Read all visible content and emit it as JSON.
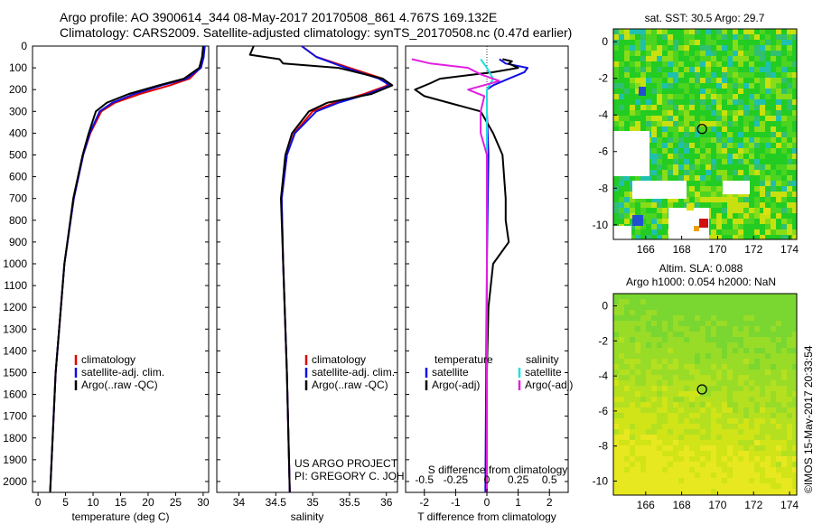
{
  "header": {
    "line1": "Argo profile: AO 3900614_344 08-May-2017 20170508_861 4.767S 169.132E",
    "line2": "Climatology: CARS2009. Satellite-adjusted climatology: synTS_20170508.nc (0.47d earlier)"
  },
  "colors": {
    "climatology": "#e00000",
    "satellite": "#1010e0",
    "argo": "#000000",
    "salinity_sat": "#20e0e0",
    "salinity_argo": "#e020e0"
  },
  "chart_data": [
    {
      "type": "line",
      "name": "temperature",
      "xlabel": "temperature (deg C)",
      "ylabel": "",
      "xlim": [
        -1,
        31
      ],
      "ylim": [
        2050,
        0
      ],
      "xticks": [
        0,
        5,
        10,
        15,
        20,
        25,
        30
      ],
      "yticks": [
        0,
        100,
        200,
        300,
        400,
        500,
        600,
        700,
        800,
        900,
        1000,
        1100,
        1200,
        1300,
        1400,
        1500,
        1600,
        1700,
        1800,
        1900,
        2000
      ],
      "legend": [
        "climatology",
        "satellite-adj. clim.",
        "Argo(..raw -QC)"
      ],
      "series": [
        {
          "name": "climatology",
          "color": "#e00000",
          "depth": [
            0,
            50,
            100,
            150,
            180,
            220,
            260,
            300,
            400,
            500,
            700,
            1000,
            1500,
            2050
          ],
          "values": [
            30.1,
            29.9,
            29.5,
            27.5,
            24,
            18.5,
            14,
            11.5,
            9.5,
            8.2,
            6.5,
            4.8,
            3.2,
            2.2
          ]
        },
        {
          "name": "satellite",
          "color": "#1010e0",
          "depth": [
            0,
            50,
            100,
            150,
            180,
            220,
            260,
            300,
            400,
            500,
            700,
            1000,
            1500,
            2050
          ],
          "values": [
            30.3,
            30.1,
            29.6,
            27,
            22.5,
            17.5,
            13.5,
            11.2,
            9.4,
            8.2,
            6.5,
            4.8,
            3.2,
            2.2
          ]
        },
        {
          "name": "argo",
          "color": "#000000",
          "depth": [
            0,
            50,
            100,
            150,
            180,
            220,
            260,
            300,
            400,
            500,
            700,
            1000,
            1500,
            2050
          ],
          "values": [
            30.0,
            29.8,
            29.3,
            26.5,
            22,
            16.5,
            12.5,
            10.5,
            9.2,
            8.1,
            6.4,
            4.8,
            3.2,
            2.2
          ]
        }
      ]
    },
    {
      "type": "line",
      "name": "salinity",
      "xlabel": "salinity",
      "ylabel": "",
      "xlim": [
        33.7,
        36.15
      ],
      "ylim": [
        2050,
        0
      ],
      "xticks": [
        34,
        34.5,
        35,
        35.5,
        36
      ],
      "xtick_labels": [
        "34",
        "34.5",
        "35",
        "35.5",
        "36"
      ],
      "legend": [
        "climatology",
        "satellite-adj. clim.",
        "Argo(..raw -QC)"
      ],
      "annotation": [
        "US ARGO PROJECT",
        "PI: GREGORY C. JOHNSON"
      ],
      "series": [
        {
          "name": "climatology",
          "color": "#e00000",
          "depth": [
            0,
            50,
            100,
            150,
            180,
            220,
            260,
            300,
            400,
            500,
            700,
            1000,
            1500,
            2050
          ],
          "values": [
            34.85,
            35.05,
            35.5,
            35.95,
            36.02,
            35.7,
            35.3,
            35.0,
            34.75,
            34.65,
            34.58,
            34.6,
            34.65,
            34.69
          ]
        },
        {
          "name": "satellite",
          "color": "#1010e0",
          "depth": [
            0,
            50,
            100,
            150,
            180,
            220,
            260,
            300,
            400,
            500,
            700,
            1000,
            1500,
            2050
          ],
          "values": [
            34.85,
            35.05,
            35.45,
            35.9,
            36.05,
            35.75,
            35.35,
            35.05,
            34.76,
            34.65,
            34.58,
            34.6,
            34.65,
            34.69
          ]
        },
        {
          "name": "argo",
          "color": "#000000",
          "depth": [
            0,
            40,
            60,
            80,
            100,
            150,
            180,
            220,
            260,
            300,
            400,
            500,
            700,
            1000,
            1500,
            2050
          ],
          "values": [
            34.2,
            34.15,
            34.55,
            34.6,
            35.35,
            35.95,
            36.08,
            35.8,
            35.2,
            34.95,
            34.72,
            34.63,
            34.57,
            34.6,
            34.65,
            34.69
          ]
        }
      ]
    },
    {
      "type": "line",
      "name": "difference",
      "xlabel": "T difference from climatology",
      "x2label": "S difference from climatology",
      "xlim": [
        -2.6,
        2.6
      ],
      "ylim": [
        2050,
        0
      ],
      "xticks": [
        -2,
        -1,
        0,
        1,
        2
      ],
      "x2ticks": [
        -0.5,
        -0.25,
        0,
        0.25,
        0.5
      ],
      "x2tick_labels": [
        "-0.5",
        "-0.25",
        "0",
        "0.25",
        "0.5"
      ],
      "legend_temperature": [
        "temperature",
        "satellite",
        "Argo(-adj)"
      ],
      "legend_salinity": [
        "salinity",
        "satellite",
        "Argo(-adj)"
      ],
      "series": [
        {
          "name": "T satellite",
          "color": "#1010e0",
          "depth": [
            60,
            80,
            100,
            120,
            150,
            180,
            200,
            300,
            500,
            1000,
            2050
          ],
          "values": [
            0.4,
            0.6,
            1.3,
            1.2,
            0.7,
            0.2,
            0.0,
            0.0,
            0.05,
            0.0,
            -0.05
          ]
        },
        {
          "name": "T argo",
          "color": "#000000",
          "depth": [
            60,
            70,
            80,
            100,
            120,
            150,
            170,
            200,
            230,
            300,
            400,
            500,
            700,
            800,
            900,
            1000,
            1200,
            1500,
            2050
          ],
          "values": [
            0.5,
            0.8,
            0.7,
            1.0,
            0.2,
            -1.5,
            -1.8,
            -2.3,
            -2.0,
            -0.2,
            0.2,
            0.5,
            0.6,
            0.6,
            0.7,
            0.2,
            0.05,
            0.0,
            0.0
          ]
        },
        {
          "name": "S satellite",
          "color": "#20e0e0",
          "depth": [
            60,
            100,
            150,
            200,
            400,
            1000,
            2050
          ],
          "values": [
            -0.05,
            0.0,
            0.05,
            0.0,
            0.0,
            0.0,
            0.0
          ]
        },
        {
          "name": "S argo",
          "color": "#e020e0",
          "depth": [
            60,
            80,
            100,
            130,
            160,
            200,
            230,
            300,
            400,
            500,
            700,
            1000,
            2050
          ],
          "values": [
            -0.6,
            -0.45,
            -0.15,
            -0.05,
            0.1,
            -0.15,
            -0.02,
            -0.05,
            -0.05,
            0.0,
            0.0,
            0.0,
            0.0
          ]
        }
      ]
    },
    {
      "type": "heatmap",
      "name": "sst-map",
      "title": "sat. SST: 30.5 Argo: 29.7",
      "xlim": [
        164.2,
        174.4
      ],
      "ylim": [
        -10.8,
        0.7
      ],
      "xticks": [
        166,
        168,
        170,
        172,
        174
      ],
      "yticks": [
        0,
        -2,
        -4,
        -6,
        -8,
        -10
      ],
      "marker": {
        "lon": 169.132,
        "lat": -4.767
      }
    },
    {
      "type": "heatmap",
      "name": "sla-map",
      "title_lines": [
        "Altim. SLA: 0.088",
        "Argo h1000: 0.054 h2000: NaN"
      ],
      "xlim": [
        164.2,
        174.4
      ],
      "ylim": [
        -10.8,
        0.7
      ],
      "xticks": [
        166,
        168,
        170,
        172,
        174
      ],
      "yticks": [
        0,
        -2,
        -4,
        -6,
        -8,
        -10
      ],
      "marker": {
        "lon": 169.132,
        "lat": -4.767
      }
    }
  ],
  "credit": "©IMOS 15-May-2017 20:33:54"
}
